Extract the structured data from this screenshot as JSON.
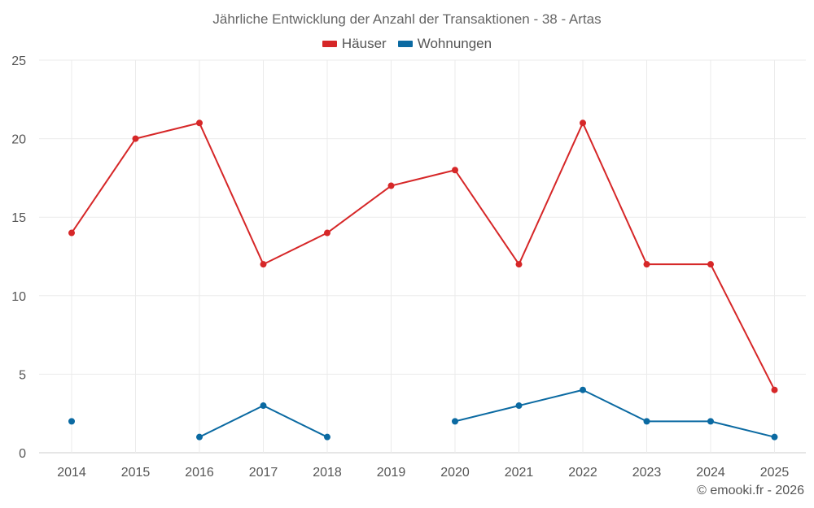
{
  "chart_data": {
    "type": "line",
    "title": "Jährliche Entwicklung der Anzahl der Transaktionen - 38 - Artas",
    "categories": [
      "2014",
      "2015",
      "2016",
      "2017",
      "2018",
      "2019",
      "2020",
      "2021",
      "2022",
      "2023",
      "2024",
      "2025"
    ],
    "ylim": [
      0,
      25
    ],
    "yticks": [
      0,
      5,
      10,
      15,
      20,
      25
    ],
    "grid": true,
    "legend_position": "top-center",
    "series": [
      {
        "name": "Häuser",
        "color": "#d62728",
        "values": [
          14,
          20,
          21,
          12,
          14,
          17,
          18,
          12,
          21,
          12,
          12,
          4
        ]
      },
      {
        "name": "Wohnungen",
        "color": "#0b6aa2",
        "values": [
          2,
          null,
          1,
          3,
          1,
          null,
          2,
          3,
          4,
          2,
          2,
          1
        ]
      }
    ]
  },
  "credit": "© emooki.fr - 2026"
}
